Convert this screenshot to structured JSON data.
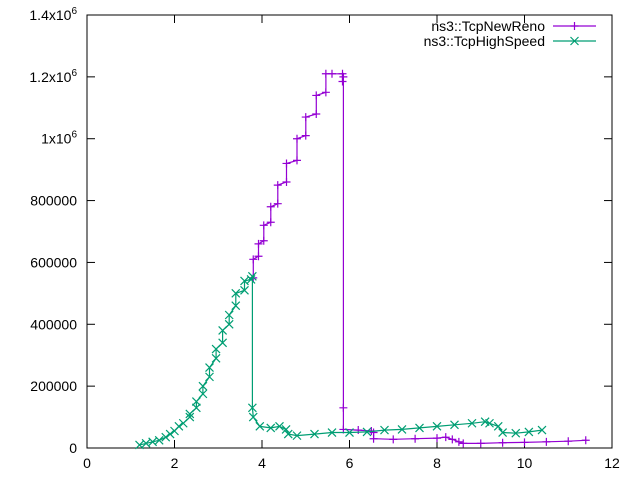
{
  "chart_data": {
    "type": "line",
    "title": "",
    "xlabel": "",
    "ylabel": "",
    "xlim": [
      0,
      12
    ],
    "ylim": [
      0,
      1400000
    ],
    "x_ticks": [
      0,
      2,
      4,
      6,
      8,
      10,
      12
    ],
    "y_ticks": [
      {
        "value": 0,
        "label": "0",
        "mant": "",
        "exp": ""
      },
      {
        "value": 200000,
        "label": "200000",
        "mant": "",
        "exp": ""
      },
      {
        "value": 400000,
        "label": "400000",
        "mant": "",
        "exp": ""
      },
      {
        "value": 600000,
        "label": "600000",
        "mant": "",
        "exp": ""
      },
      {
        "value": 800000,
        "label": "800000",
        "mant": "",
        "exp": ""
      },
      {
        "value": 1000000,
        "label": "",
        "mant": "1x10",
        "exp": "6"
      },
      {
        "value": 1200000,
        "label": "",
        "mant": "1.2x10",
        "exp": "6"
      },
      {
        "value": 1400000,
        "label": "",
        "mant": "1.4x10",
        "exp": "6"
      }
    ],
    "grid": false,
    "legend_position": "top-right",
    "series": [
      {
        "name": "ns3::TcpNewReno",
        "color": "#9400d3",
        "marker": "plus",
        "points": [
          [
            3.8,
            550000
          ],
          [
            3.8,
            610000
          ],
          [
            3.92,
            620000
          ],
          [
            3.92,
            660000
          ],
          [
            4.04,
            670000
          ],
          [
            4.04,
            720000
          ],
          [
            4.2,
            730000
          ],
          [
            4.2,
            780000
          ],
          [
            4.36,
            790000
          ],
          [
            4.36,
            850000
          ],
          [
            4.56,
            860000
          ],
          [
            4.56,
            920000
          ],
          [
            4.8,
            930000
          ],
          [
            4.8,
            1000000
          ],
          [
            5.0,
            1010000
          ],
          [
            5.0,
            1070000
          ],
          [
            5.24,
            1080000
          ],
          [
            5.24,
            1140000
          ],
          [
            5.46,
            1150000
          ],
          [
            5.46,
            1210000
          ],
          [
            5.6,
            1210000
          ],
          [
            5.84,
            1210000
          ],
          [
            5.84,
            1185000
          ],
          [
            5.86,
            1200000
          ],
          [
            5.86,
            130000
          ],
          [
            5.86,
            60000
          ],
          [
            6.2,
            58000
          ],
          [
            6.5,
            55000
          ],
          [
            6.55,
            50000
          ],
          [
            6.55,
            30000
          ],
          [
            7.0,
            28000
          ],
          [
            7.5,
            30000
          ],
          [
            8.0,
            32000
          ],
          [
            8.2,
            35000
          ],
          [
            8.35,
            28000
          ],
          [
            8.5,
            20000
          ],
          [
            8.6,
            15000
          ],
          [
            9.0,
            15000
          ],
          [
            9.5,
            17000
          ],
          [
            10.0,
            18000
          ],
          [
            10.5,
            20000
          ],
          [
            11.0,
            22000
          ],
          [
            11.4,
            25000
          ]
        ]
      },
      {
        "name": "ns3::TcpHighSpeed",
        "color": "#009e73",
        "marker": "cross",
        "points": [
          [
            1.2,
            10000
          ],
          [
            1.35,
            15000
          ],
          [
            1.5,
            20000
          ],
          [
            1.65,
            25000
          ],
          [
            1.8,
            35000
          ],
          [
            1.9,
            45000
          ],
          [
            2.0,
            55000
          ],
          [
            2.1,
            70000
          ],
          [
            2.2,
            80000
          ],
          [
            2.35,
            100000
          ],
          [
            2.35,
            110000
          ],
          [
            2.5,
            130000
          ],
          [
            2.5,
            150000
          ],
          [
            2.65,
            175000
          ],
          [
            2.65,
            200000
          ],
          [
            2.8,
            230000
          ],
          [
            2.8,
            260000
          ],
          [
            2.95,
            290000
          ],
          [
            2.95,
            320000
          ],
          [
            3.1,
            340000
          ],
          [
            3.1,
            380000
          ],
          [
            3.25,
            400000
          ],
          [
            3.25,
            430000
          ],
          [
            3.4,
            460000
          ],
          [
            3.4,
            500000
          ],
          [
            3.6,
            510000
          ],
          [
            3.6,
            540000
          ],
          [
            3.75,
            545000
          ],
          [
            3.78,
            555000
          ],
          [
            3.78,
            130000
          ],
          [
            3.8,
            100000
          ],
          [
            3.95,
            70000
          ],
          [
            4.2,
            65000
          ],
          [
            4.4,
            70000
          ],
          [
            4.55,
            60000
          ],
          [
            4.6,
            45000
          ],
          [
            4.8,
            40000
          ],
          [
            5.2,
            45000
          ],
          [
            5.6,
            50000
          ],
          [
            6.0,
            50000
          ],
          [
            6.4,
            52000
          ],
          [
            6.8,
            58000
          ],
          [
            7.2,
            60000
          ],
          [
            7.6,
            65000
          ],
          [
            8.0,
            70000
          ],
          [
            8.4,
            75000
          ],
          [
            8.8,
            80000
          ],
          [
            9.1,
            85000
          ],
          [
            9.2,
            80000
          ],
          [
            9.4,
            70000
          ],
          [
            9.5,
            50000
          ],
          [
            9.8,
            48000
          ],
          [
            10.1,
            52000
          ],
          [
            10.4,
            58000
          ]
        ]
      }
    ]
  }
}
